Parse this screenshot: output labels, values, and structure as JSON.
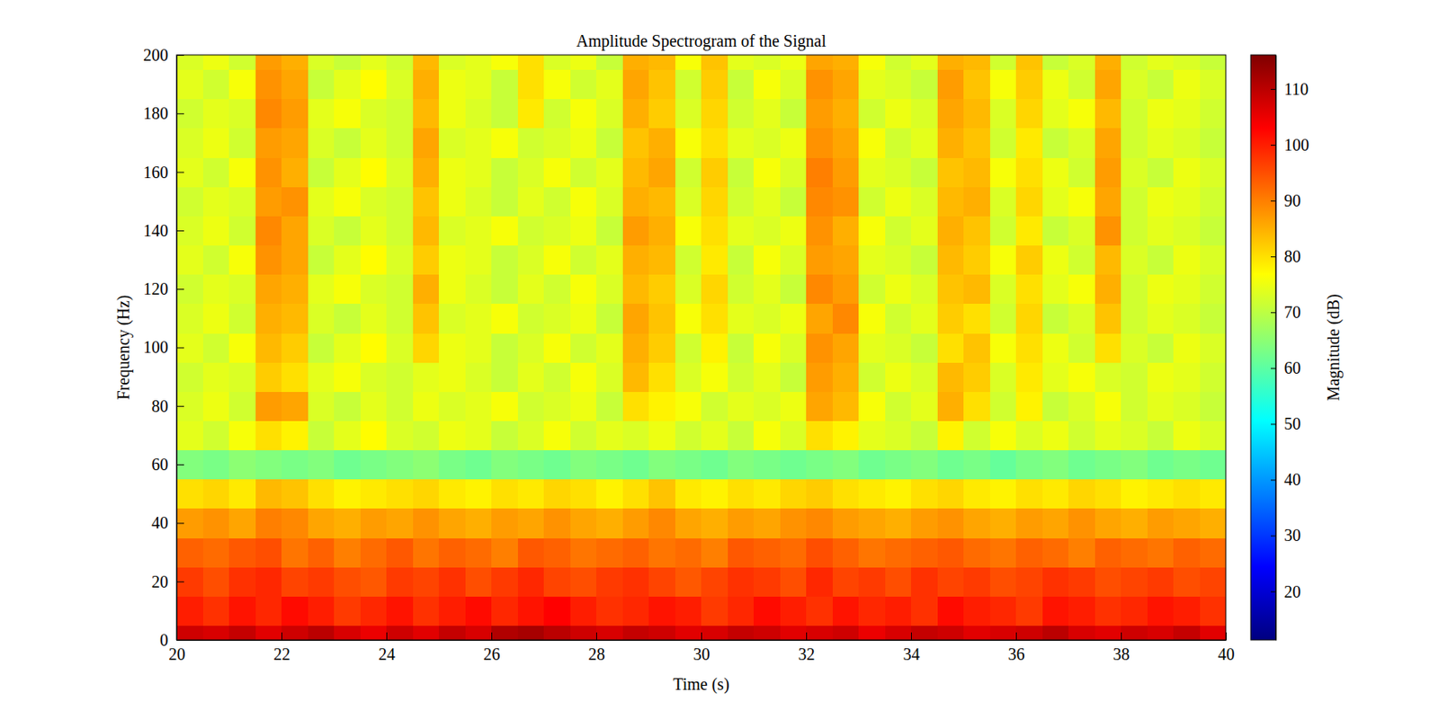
{
  "chart_data": {
    "type": "heatmap",
    "title": "Amplitude Spectrogram of the Signal",
    "x_label": "Time (s)",
    "y_label": "Frequency (Hz)",
    "color": "jet",
    "xlim": [
      20,
      40
    ],
    "ylim": [
      0,
      200
    ],
    "xticks": [
      20,
      22,
      24,
      26,
      28,
      30,
      32,
      34,
      36,
      38,
      40
    ],
    "yticks": [
      0,
      20,
      40,
      60,
      80,
      100,
      120,
      140,
      160,
      180,
      200
    ],
    "x": [
      20.25,
      20.75,
      21.25,
      21.75,
      22.25,
      22.75,
      23.25,
      23.75,
      24.25,
      24.75,
      25.25,
      25.75,
      26.25,
      26.75,
      27.25,
      27.75,
      28.25,
      28.75,
      29.25,
      29.75,
      30.25,
      30.75,
      31.25,
      31.75,
      32.25,
      32.75,
      33.25,
      33.75,
      34.25,
      34.75,
      35.25,
      35.75,
      36.25,
      36.75,
      37.25,
      37.75,
      38.25,
      38.75,
      39.25,
      39.75
    ],
    "y": [
      0,
      10,
      20,
      30,
      40,
      50,
      60,
      70,
      80,
      90,
      100,
      110,
      120,
      130,
      140,
      150,
      160,
      170,
      180,
      190,
      200
    ],
    "values": [
      [
        108,
        107,
        109,
        106,
        108,
        110,
        107,
        105,
        108,
        106,
        109,
        107,
        111,
        112,
        110,
        108,
        107,
        109,
        108,
        106,
        107,
        109,
        108,
        106,
        107,
        108,
        105,
        107,
        109,
        108,
        106,
        107,
        108,
        110,
        107,
        106,
        108,
        107,
        109,
        106
      ],
      [
        100,
        98,
        101,
        99,
        102,
        100,
        97,
        99,
        101,
        98,
        100,
        102,
        99,
        101,
        103,
        100,
        98,
        99,
        101,
        100,
        97,
        99,
        102,
        100,
        98,
        101,
        99,
        100,
        98,
        102,
        100,
        99,
        97,
        101,
        100,
        98,
        99,
        101,
        100,
        98
      ],
      [
        97,
        95,
        98,
        99,
        96,
        97,
        95,
        94,
        97,
        96,
        98,
        95,
        97,
        99,
        96,
        95,
        97,
        98,
        96,
        94,
        96,
        98,
        97,
        95,
        99,
        96,
        97,
        95,
        98,
        96,
        97,
        95,
        96,
        98,
        97,
        95,
        96,
        97,
        95,
        96
      ],
      [
        93,
        92,
        94,
        95,
        91,
        93,
        90,
        92,
        94,
        91,
        93,
        92,
        90,
        94,
        93,
        91,
        92,
        93,
        91,
        92,
        90,
        94,
        93,
        92,
        95,
        93,
        91,
        92,
        93,
        94,
        92,
        91,
        93,
        92,
        90,
        93,
        92,
        91,
        93,
        92
      ],
      [
        87,
        88,
        86,
        90,
        89,
        86,
        85,
        87,
        86,
        88,
        86,
        85,
        87,
        86,
        88,
        86,
        85,
        87,
        89,
        86,
        85,
        87,
        86,
        88,
        89,
        87,
        86,
        85,
        87,
        88,
        86,
        85,
        87,
        86,
        88,
        86,
        85,
        87,
        86,
        85
      ],
      [
        80,
        81,
        79,
        84,
        83,
        80,
        78,
        79,
        80,
        81,
        79,
        78,
        80,
        79,
        81,
        80,
        78,
        80,
        83,
        79,
        78,
        80,
        79,
        81,
        82,
        80,
        79,
        78,
        80,
        81,
        79,
        78,
        80,
        79,
        81,
        80,
        78,
        79,
        80,
        79
      ],
      [
        64,
        63,
        65,
        64,
        63,
        64,
        62,
        63,
        64,
        65,
        63,
        62,
        64,
        63,
        62,
        64,
        63,
        62,
        64,
        63,
        62,
        64,
        63,
        62,
        63,
        64,
        62,
        63,
        64,
        62,
        63,
        61,
        63,
        64,
        62,
        63,
        64,
        62,
        63,
        62
      ],
      [
        74,
        72,
        76,
        80,
        78,
        71,
        74,
        77,
        73,
        72,
        75,
        74,
        71,
        73,
        76,
        72,
        74,
        73,
        75,
        72,
        74,
        71,
        76,
        73,
        80,
        78,
        74,
        73,
        71,
        78,
        72,
        76,
        73,
        75,
        72,
        74,
        73,
        71,
        75,
        73
      ],
      [
        73,
        75,
        72,
        87,
        86,
        73,
        71,
        74,
        72,
        75,
        73,
        74,
        76,
        72,
        73,
        75,
        71,
        80,
        78,
        76,
        72,
        74,
        73,
        75,
        86,
        84,
        76,
        72,
        74,
        85,
        80,
        72,
        78,
        71,
        73,
        76,
        72,
        74,
        73,
        71
      ],
      [
        72,
        74,
        73,
        82,
        80,
        74,
        76,
        73,
        72,
        74,
        75,
        73,
        71,
        74,
        72,
        76,
        73,
        84,
        80,
        73,
        76,
        72,
        74,
        71,
        87,
        85,
        72,
        75,
        73,
        84,
        82,
        73,
        79,
        74,
        76,
        73,
        72,
        75,
        74,
        72
      ],
      [
        74,
        72,
        76,
        84,
        82,
        71,
        74,
        77,
        73,
        81,
        75,
        74,
        71,
        73,
        76,
        72,
        74,
        85,
        82,
        72,
        78,
        71,
        76,
        73,
        88,
        86,
        74,
        73,
        71,
        80,
        83,
        76,
        80,
        75,
        72,
        80,
        73,
        71,
        75,
        73
      ],
      [
        73,
        75,
        72,
        85,
        84,
        73,
        71,
        74,
        72,
        83,
        73,
        74,
        76,
        72,
        73,
        75,
        71,
        86,
        83,
        76,
        80,
        74,
        73,
        75,
        86,
        89,
        76,
        72,
        74,
        82,
        80,
        72,
        81,
        71,
        73,
        83,
        72,
        74,
        73,
        71
      ],
      [
        72,
        74,
        73,
        86,
        85,
        74,
        76,
        73,
        72,
        85,
        75,
        73,
        71,
        74,
        72,
        76,
        73,
        84,
        82,
        73,
        81,
        72,
        74,
        71,
        89,
        87,
        72,
        75,
        73,
        83,
        84,
        73,
        80,
        74,
        76,
        85,
        72,
        75,
        74,
        72
      ],
      [
        74,
        72,
        76,
        88,
        86,
        71,
        74,
        77,
        73,
        82,
        75,
        74,
        71,
        73,
        76,
        72,
        74,
        85,
        84,
        72,
        79,
        71,
        76,
        73,
        87,
        86,
        74,
        73,
        71,
        84,
        82,
        76,
        82,
        75,
        72,
        84,
        73,
        71,
        75,
        73
      ],
      [
        73,
        75,
        72,
        89,
        86,
        73,
        71,
        74,
        72,
        84,
        73,
        74,
        76,
        72,
        73,
        75,
        71,
        87,
        85,
        76,
        80,
        74,
        73,
        75,
        88,
        85,
        76,
        72,
        74,
        85,
        83,
        72,
        79,
        71,
        73,
        88,
        72,
        74,
        73,
        71
      ],
      [
        72,
        74,
        73,
        87,
        88,
        74,
        76,
        73,
        72,
        83,
        75,
        73,
        71,
        74,
        72,
        76,
        73,
        85,
        84,
        73,
        81,
        72,
        74,
        71,
        89,
        88,
        72,
        75,
        73,
        84,
        85,
        73,
        81,
        74,
        76,
        86,
        72,
        75,
        74,
        72
      ],
      [
        74,
        72,
        76,
        88,
        85,
        71,
        74,
        77,
        73,
        85,
        75,
        74,
        71,
        73,
        76,
        72,
        74,
        84,
        86,
        72,
        82,
        71,
        76,
        73,
        90,
        87,
        74,
        73,
        71,
        83,
        84,
        76,
        80,
        75,
        72,
        87,
        73,
        71,
        75,
        73
      ],
      [
        73,
        75,
        72,
        87,
        86,
        73,
        71,
        74,
        72,
        86,
        73,
        74,
        76,
        72,
        73,
        75,
        71,
        83,
        85,
        76,
        80,
        74,
        73,
        75,
        88,
        86,
        76,
        72,
        74,
        85,
        83,
        72,
        79,
        71,
        73,
        86,
        72,
        74,
        73,
        71
      ],
      [
        72,
        74,
        73,
        89,
        87,
        74,
        76,
        73,
        72,
        84,
        75,
        73,
        71,
        79,
        72,
        76,
        73,
        85,
        82,
        73,
        81,
        72,
        74,
        71,
        87,
        85,
        72,
        75,
        73,
        86,
        84,
        73,
        81,
        74,
        76,
        84,
        72,
        75,
        74,
        72
      ],
      [
        74,
        72,
        76,
        88,
        86,
        71,
        74,
        77,
        73,
        85,
        75,
        74,
        71,
        80,
        76,
        72,
        74,
        86,
        83,
        72,
        82,
        71,
        76,
        73,
        88,
        86,
        74,
        73,
        71,
        87,
        83,
        76,
        82,
        75,
        72,
        86,
        73,
        71,
        75,
        73
      ],
      [
        73,
        75,
        72,
        87,
        85,
        73,
        71,
        74,
        72,
        84,
        73,
        74,
        76,
        80,
        73,
        75,
        71,
        85,
        84,
        76,
        83,
        74,
        73,
        75,
        86,
        85,
        76,
        72,
        74,
        85,
        84,
        72,
        83,
        71,
        73,
        85,
        72,
        74,
        73,
        71
      ]
    ],
    "colorbar": {
      "label": "Magnitude (dB)",
      "range": [
        11.3,
        116.1
      ],
      "ticks": [
        20,
        30,
        40,
        50,
        60,
        70,
        80,
        90,
        100,
        110
      ]
    }
  }
}
